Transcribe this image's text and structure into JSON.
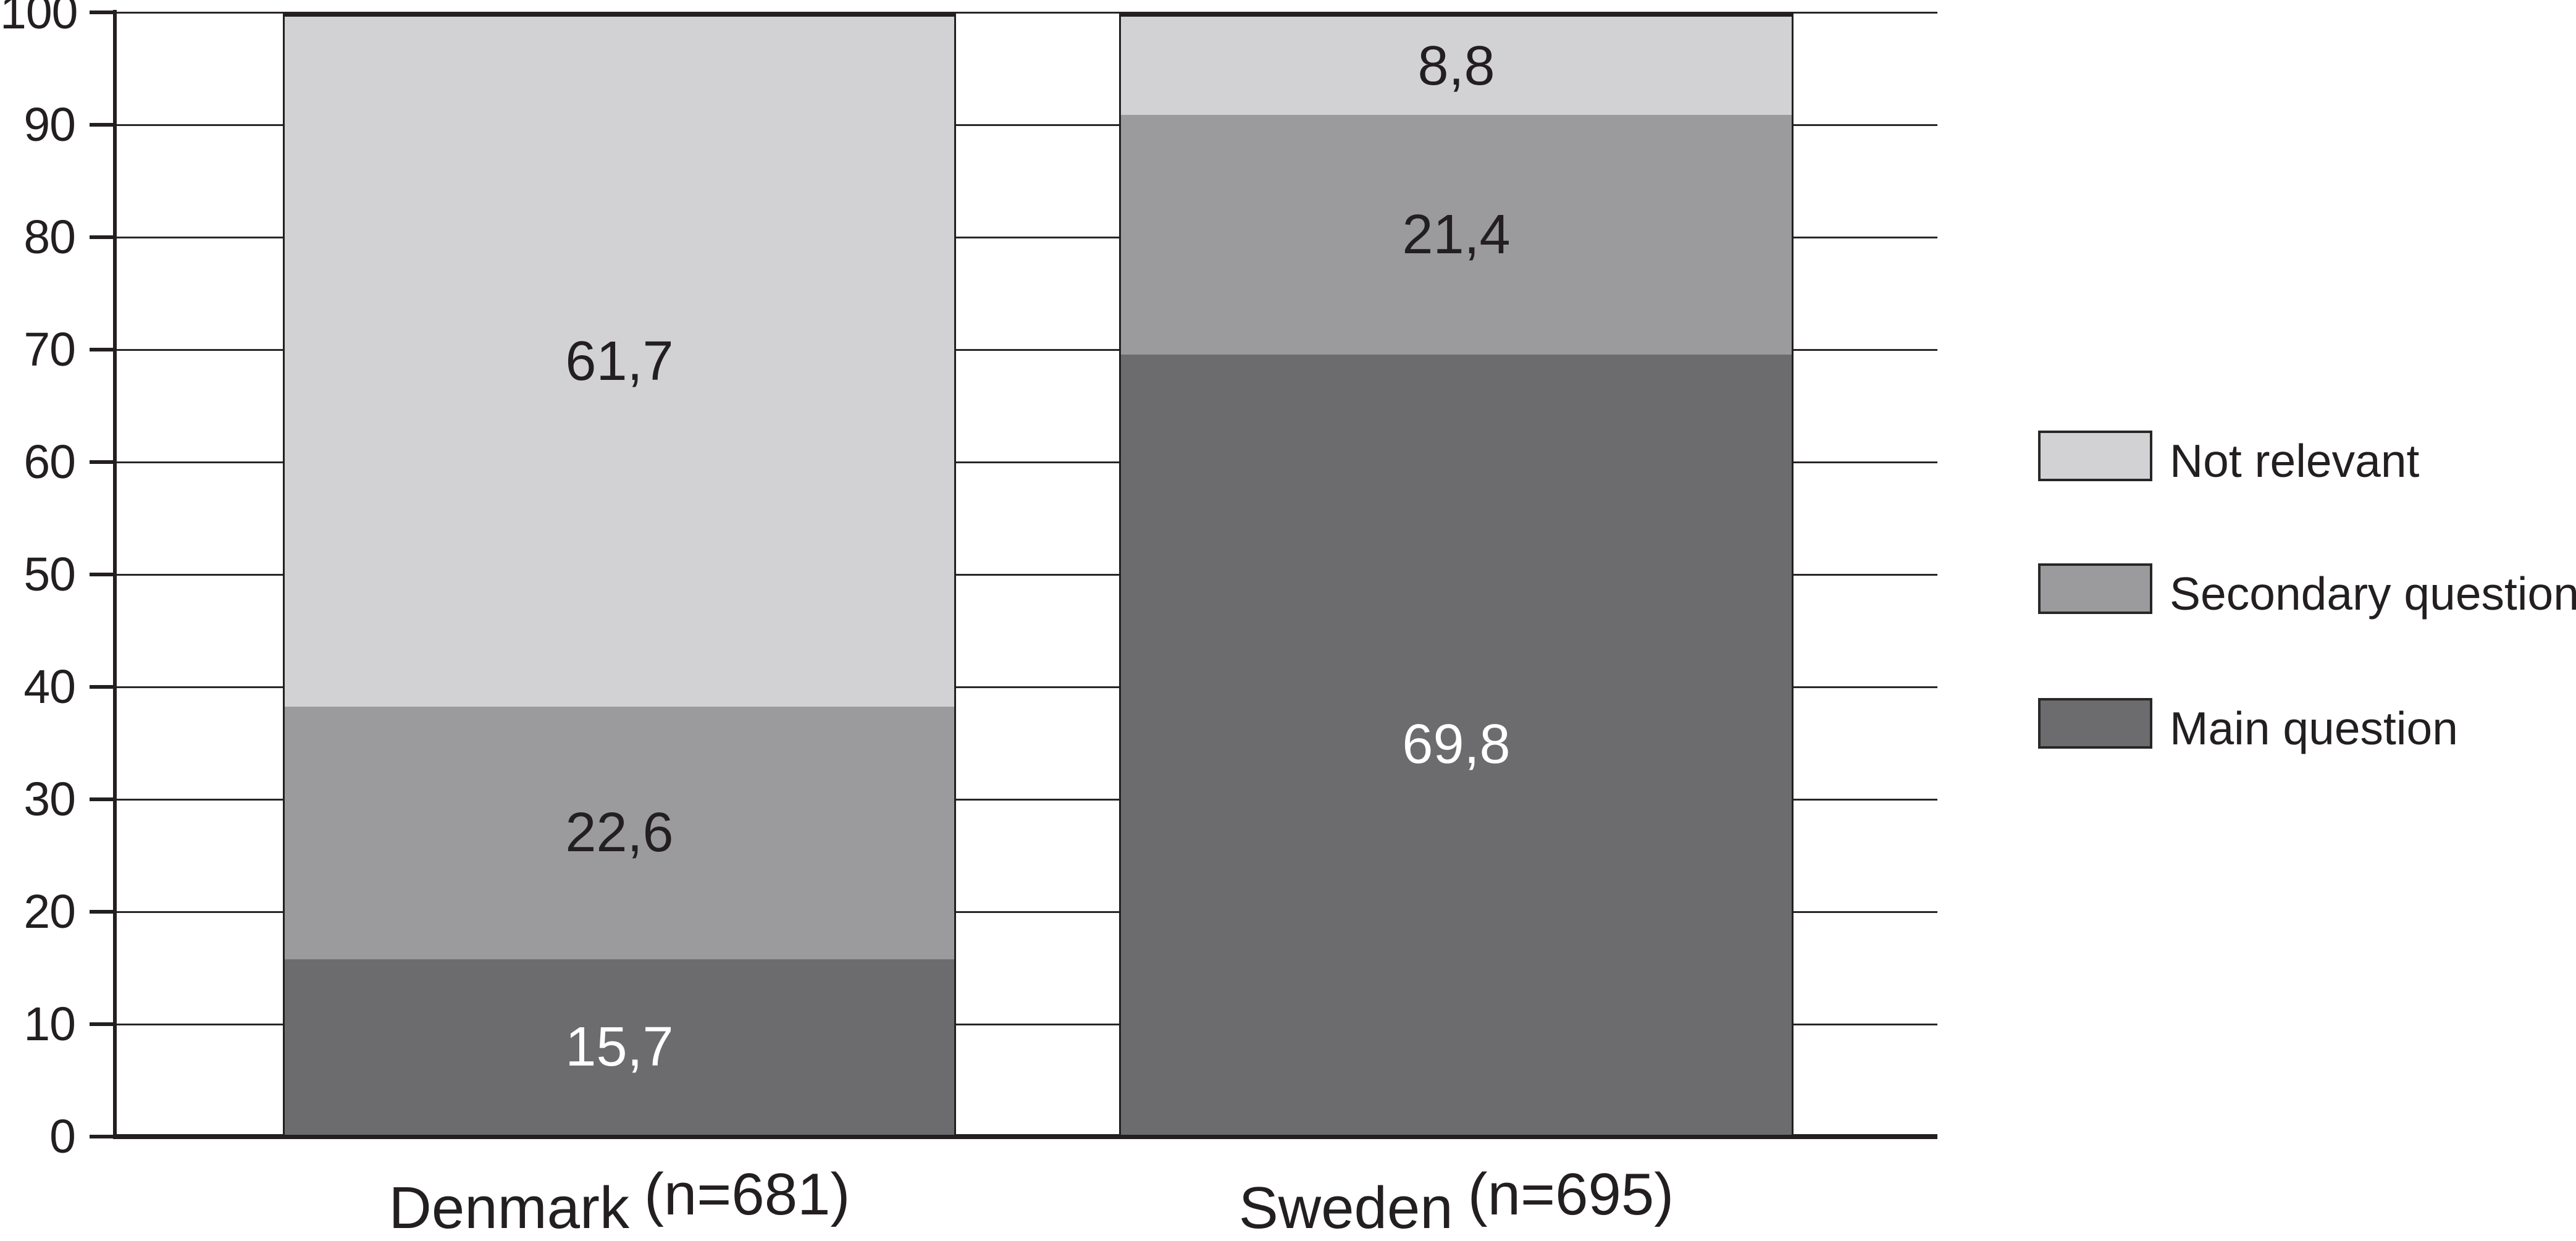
{
  "chart_data": {
    "type": "bar",
    "stacked": true,
    "unit": "percent",
    "title": "",
    "xlabel": "",
    "ylabel": "",
    "ylim": [
      0,
      100
    ],
    "y_ticks": [
      "0",
      "10",
      "20",
      "30",
      "40",
      "50",
      "60",
      "70",
      "80",
      "90",
      "100"
    ],
    "grid": true,
    "legend_position": "right",
    "categories": [
      {
        "name": "Denmark",
        "n_label": "(n=681)"
      },
      {
        "name": "Sweden",
        "n_label": "(n=695)"
      }
    ],
    "series": [
      {
        "name": "Main question",
        "values": [
          15.7,
          69.8
        ],
        "display": [
          "15,7",
          "69,8"
        ],
        "color": "#6c6c6f",
        "label_color": "#ffffff"
      },
      {
        "name": "Secondary question",
        "values": [
          22.6,
          21.4
        ],
        "display": [
          "22,6",
          "21,4"
        ],
        "color": "#9b9b9e",
        "label_color": "#231f20"
      },
      {
        "name": "Not relevant",
        "values": [
          61.7,
          8.8
        ],
        "display": [
          "61,7",
          "8,8"
        ],
        "color": "#d2d2d4",
        "label_color": "#231f20"
      }
    ]
  },
  "legend": {
    "entries": [
      {
        "label": "Not relevant",
        "color": "#d2d2d4"
      },
      {
        "label": "Secondary question",
        "color": "#9b9b9e"
      },
      {
        "label": "Main question",
        "color": "#6c6c6f"
      }
    ]
  },
  "colors": {
    "ink": "#231f20",
    "background": "#ffffff"
  }
}
